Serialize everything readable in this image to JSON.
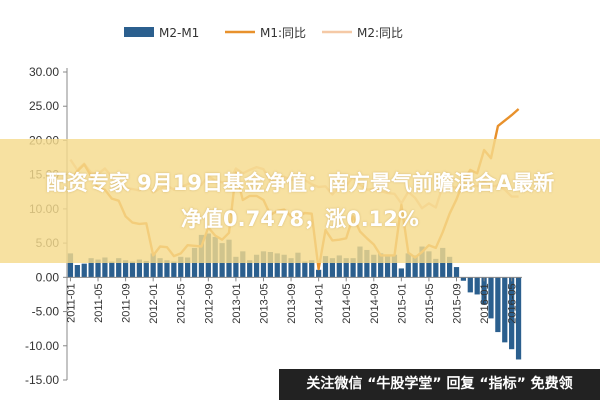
{
  "chart_data": {
    "type": "bar+line",
    "legend_position": "top",
    "grid": false,
    "ylim": [
      -15,
      30
    ],
    "yticks": [
      "30.00",
      "25.00",
      "20.00",
      "15.00",
      "10.00",
      "5.00",
      "0.00",
      "-5.00",
      "-10.00",
      "-15.00"
    ],
    "ytick_values": [
      30,
      25,
      20,
      15,
      10,
      5,
      0,
      -5,
      -10,
      -15
    ],
    "xticks": [
      "2011-01",
      "2011-05",
      "2011-09",
      "2012-01",
      "2012-05",
      "2012-09",
      "2013-01",
      "2013-05",
      "2013-09",
      "2014-01",
      "2014-05",
      "2014-09",
      "2015-01",
      "2015-05",
      "2015-09",
      "2016-01",
      "2016-05"
    ],
    "x": [
      "2011-01",
      "2011-02",
      "2011-03",
      "2011-04",
      "2011-05",
      "2011-06",
      "2011-07",
      "2011-08",
      "2011-09",
      "2011-10",
      "2011-11",
      "2011-12",
      "2012-01",
      "2012-02",
      "2012-03",
      "2012-04",
      "2012-05",
      "2012-06",
      "2012-07",
      "2012-08",
      "2012-09",
      "2012-10",
      "2012-11",
      "2012-12",
      "2013-01",
      "2013-02",
      "2013-03",
      "2013-04",
      "2013-05",
      "2013-06",
      "2013-07",
      "2013-08",
      "2013-09",
      "2013-10",
      "2013-11",
      "2013-12",
      "2014-01",
      "2014-02",
      "2014-03",
      "2014-04",
      "2014-05",
      "2014-06",
      "2014-07",
      "2014-08",
      "2014-09",
      "2014-10",
      "2014-11",
      "2014-12",
      "2015-01",
      "2015-02",
      "2015-03",
      "2015-04",
      "2015-05",
      "2015-06",
      "2015-07",
      "2015-08",
      "2015-09",
      "2015-10",
      "2015-11",
      "2015-12",
      "2016-01",
      "2016-02",
      "2016-03",
      "2016-04",
      "2016-05",
      "2016-06"
    ],
    "series": [
      {
        "name": "M2-M1",
        "kind": "bar",
        "color": "#2b5f8e",
        "values": [
          3.5,
          1.8,
          2.0,
          2.8,
          2.6,
          2.9,
          2.3,
          2.8,
          2.5,
          2.3,
          2.6,
          2.4,
          3.5,
          2.8,
          2.5,
          2.3,
          3.0,
          2.9,
          4.3,
          6.2,
          6.4,
          5.9,
          5.0,
          5.5,
          3.0,
          3.8,
          2.5,
          3.3,
          3.8,
          3.7,
          3.5,
          3.3,
          2.8,
          3.6,
          2.3,
          2.5,
          1.1,
          3.1,
          2.8,
          3.2,
          2.8,
          2.8,
          4.5,
          4.0,
          3.3,
          3.5,
          3.2,
          3.3,
          1.3,
          3.5,
          3.2,
          4.5,
          3.8,
          2.7,
          4.3,
          3.0,
          1.5,
          -0.5,
          -2.2,
          -2.5,
          -4.0,
          -6.0,
          -8.0,
          -9.5,
          -10.5,
          -12.0
        ]
      },
      {
        "name": "M1:同比",
        "kind": "line",
        "color": "#e8912c",
        "values": [
          14.0,
          15.5,
          16.5,
          14.8,
          13.0,
          12.8,
          11.5,
          11.2,
          8.9,
          8.0,
          7.8,
          7.9,
          3.2,
          4.5,
          4.4,
          3.1,
          3.5,
          4.7,
          4.6,
          4.5,
          7.3,
          6.1,
          5.5,
          6.5,
          15.3,
          11.3,
          11.9,
          11.9,
          11.3,
          9.1,
          9.7,
          9.9,
          8.9,
          8.9,
          9.4,
          9.3,
          1.2,
          6.9,
          5.4,
          5.5,
          5.7,
          8.9,
          6.7,
          5.7,
          4.8,
          3.2,
          3.2,
          3.2,
          10.6,
          3.6,
          2.9,
          3.7,
          4.7,
          4.3,
          6.6,
          9.3,
          11.4,
          14.0,
          15.7,
          15.2,
          18.6,
          17.4,
          22.1,
          22.9,
          23.7,
          24.6
        ]
      },
      {
        "name": "M2:同比",
        "kind": "line",
        "color": "#f5c9a6",
        "values": [
          17.2,
          15.7,
          16.6,
          15.3,
          15.1,
          15.9,
          14.7,
          13.5,
          13.0,
          12.9,
          12.7,
          13.6,
          12.4,
          13.0,
          13.4,
          12.8,
          13.2,
          13.6,
          13.9,
          13.5,
          14.8,
          14.1,
          13.9,
          13.8,
          15.9,
          15.2,
          15.7,
          16.1,
          15.8,
          14.0,
          14.5,
          14.7,
          14.2,
          14.3,
          14.2,
          13.6,
          13.2,
          13.3,
          12.1,
          13.2,
          13.4,
          14.7,
          13.5,
          12.8,
          12.9,
          12.6,
          12.3,
          12.2,
          10.8,
          12.5,
          11.6,
          10.1,
          10.8,
          10.2,
          13.3,
          13.3,
          13.1,
          13.5,
          13.7,
          13.3,
          14.0,
          13.3,
          13.4,
          12.8,
          11.8,
          11.8
        ]
      }
    ]
  },
  "banner": {
    "line1": "配资专家 9月19日基金净值：南方景气前瞻混合A最新",
    "line2": "净值0.7478，涨0.12%"
  },
  "watermark": {
    "text": "关注微信 “牛股学堂” 回复 “指标” 免费领"
  }
}
